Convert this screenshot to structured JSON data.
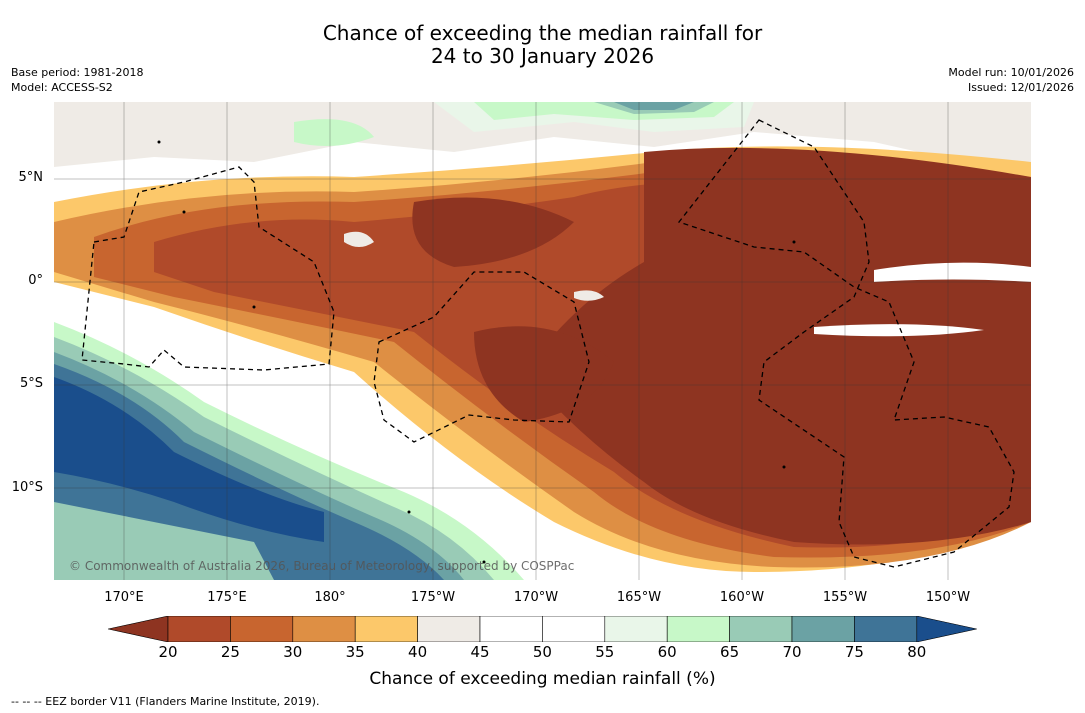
{
  "header": {
    "title_line1": "Chance of exceeding the median rainfall for",
    "title_line2": "24 to 30 January 2026",
    "base_period": "Base period: 1981-2018",
    "model": "Model: ACCESS-S2",
    "model_run": "Model run: 10/01/2026",
    "issued": "Issued: 12/01/2026"
  },
  "map": {
    "copyright": "© Commonwealth of Australia 2026, Bureau of Meteorology, supported by COSPPac",
    "lat_labels": [
      "5°N",
      "0°",
      "5°S",
      "10°S"
    ],
    "lon_labels": [
      "170°E",
      "175°E",
      "180°",
      "175°W",
      "170°W",
      "165°W",
      "160°W",
      "155°W",
      "150°W"
    ]
  },
  "colorbar": {
    "ticks": [
      "20",
      "25",
      "30",
      "35",
      "40",
      "45",
      "50",
      "55",
      "60",
      "65",
      "70",
      "75",
      "80"
    ],
    "colors": [
      "#8e3421",
      "#b04a2a",
      "#c8652f",
      "#de8f44",
      "#fcc86a",
      "#efebe6",
      "#ffffff",
      "#ffffff",
      "#e9f6e9",
      "#c7f8c8",
      "#99cbb6",
      "#6ba2a4",
      "#3f7497",
      "#1a4e8c"
    ],
    "title": "Chance of exceeding median rainfall (%)"
  },
  "footnote": "--  --  -- EEZ border V11 (Flanders Marine Institute, 2019)."
}
